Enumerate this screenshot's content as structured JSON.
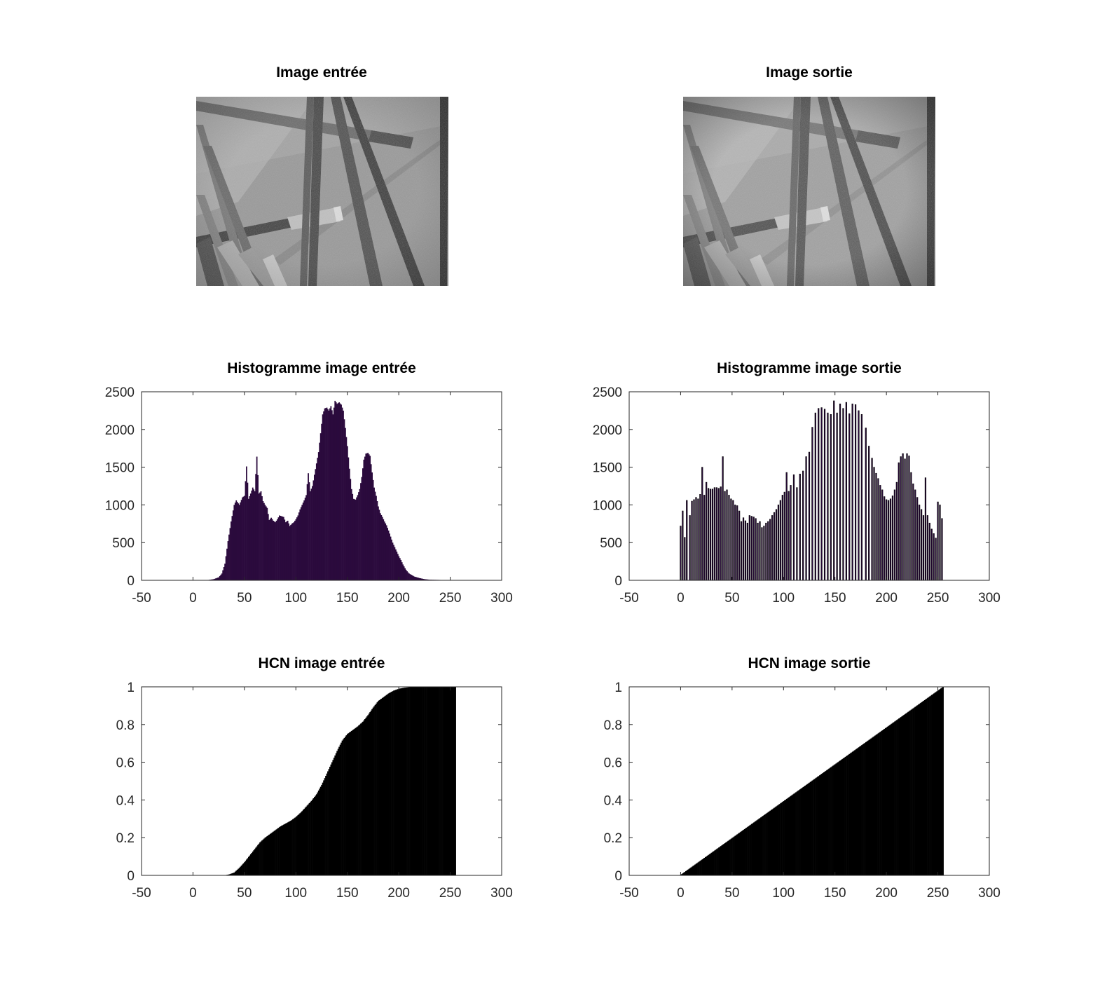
{
  "figure": {
    "images": [
      {
        "title": "Image entrée",
        "kind": "input"
      },
      {
        "title": "Image sortie",
        "kind": "output"
      }
    ]
  },
  "chart_data": [
    {
      "type": "bar",
      "title": "Histogramme image entrée",
      "xlabel": "",
      "ylabel": "",
      "xlim": [
        -50,
        300
      ],
      "ylim": [
        0,
        2500
      ],
      "xticks": [
        "-50",
        "0",
        "50",
        "100",
        "150",
        "200",
        "250",
        "300"
      ],
      "yticks": [
        "0",
        "500",
        "1000",
        "1500",
        "2000",
        "2500"
      ],
      "color": "#2b0a3d",
      "points": [
        [
          0,
          0
        ],
        [
          15,
          5
        ],
        [
          20,
          15
        ],
        [
          25,
          40
        ],
        [
          28,
          90
        ],
        [
          31,
          220
        ],
        [
          34,
          520
        ],
        [
          37,
          780
        ],
        [
          40,
          1000
        ],
        [
          42,
          1060
        ],
        [
          45,
          1000
        ],
        [
          48,
          1100
        ],
        [
          50,
          1120
        ],
        [
          52,
          1510
        ],
        [
          54,
          1080
        ],
        [
          56,
          1150
        ],
        [
          58,
          1230
        ],
        [
          60,
          1180
        ],
        [
          62,
          1640
        ],
        [
          64,
          1150
        ],
        [
          66,
          1180
        ],
        [
          68,
          1050
        ],
        [
          70,
          1000
        ],
        [
          72,
          960
        ],
        [
          74,
          800
        ],
        [
          76,
          830
        ],
        [
          78,
          790
        ],
        [
          80,
          770
        ],
        [
          82,
          810
        ],
        [
          84,
          860
        ],
        [
          86,
          850
        ],
        [
          88,
          840
        ],
        [
          90,
          770
        ],
        [
          92,
          790
        ],
        [
          94,
          720
        ],
        [
          96,
          750
        ],
        [
          98,
          770
        ],
        [
          100,
          810
        ],
        [
          102,
          860
        ],
        [
          104,
          940
        ],
        [
          106,
          1000
        ],
        [
          108,
          1060
        ],
        [
          110,
          1130
        ],
        [
          112,
          1420
        ],
        [
          114,
          1180
        ],
        [
          116,
          1250
        ],
        [
          118,
          1400
        ],
        [
          120,
          1550
        ],
        [
          122,
          1700
        ],
        [
          124,
          1950
        ],
        [
          126,
          2200
        ],
        [
          128,
          2280
        ],
        [
          130,
          2290
        ],
        [
          132,
          2250
        ],
        [
          134,
          2310
        ],
        [
          136,
          2200
        ],
        [
          138,
          2380
        ],
        [
          140,
          2340
        ],
        [
          142,
          2360
        ],
        [
          144,
          2330
        ],
        [
          146,
          2250
        ],
        [
          148,
          2020
        ],
        [
          150,
          1780
        ],
        [
          152,
          1480
        ],
        [
          154,
          1210
        ],
        [
          156,
          1080
        ],
        [
          158,
          1070
        ],
        [
          160,
          1130
        ],
        [
          162,
          1210
        ],
        [
          164,
          1370
        ],
        [
          166,
          1600
        ],
        [
          168,
          1680
        ],
        [
          170,
          1690
        ],
        [
          172,
          1650
        ],
        [
          174,
          1430
        ],
        [
          176,
          1230
        ],
        [
          178,
          1120
        ],
        [
          180,
          980
        ],
        [
          182,
          890
        ],
        [
          184,
          840
        ],
        [
          186,
          780
        ],
        [
          188,
          730
        ],
        [
          190,
          660
        ],
        [
          192,
          580
        ],
        [
          194,
          500
        ],
        [
          196,
          440
        ],
        [
          198,
          380
        ],
        [
          200,
          320
        ],
        [
          202,
          270
        ],
        [
          204,
          210
        ],
        [
          206,
          160
        ],
        [
          208,
          120
        ],
        [
          210,
          90
        ],
        [
          215,
          50
        ],
        [
          220,
          30
        ],
        [
          225,
          15
        ],
        [
          230,
          8
        ],
        [
          240,
          5
        ],
        [
          255,
          0
        ]
      ]
    },
    {
      "type": "bar",
      "title": "Histogramme image sortie",
      "xlabel": "",
      "ylabel": "",
      "xlim": [
        -50,
        300
      ],
      "ylim": [
        0,
        2500
      ],
      "xticks": [
        "-50",
        "0",
        "50",
        "100",
        "150",
        "200",
        "250",
        "300"
      ],
      "yticks": [
        "0",
        "500",
        "1000",
        "1500",
        "2000",
        "2500"
      ],
      "color": "#2b0a3d",
      "bars": [
        [
          0,
          720
        ],
        [
          2,
          920
        ],
        [
          4,
          570
        ],
        [
          6,
          1060
        ],
        [
          9,
          860
        ],
        [
          11,
          1050
        ],
        [
          13,
          1070
        ],
        [
          15,
          1100
        ],
        [
          17,
          1080
        ],
        [
          19,
          1140
        ],
        [
          21,
          1500
        ],
        [
          23,
          1130
        ],
        [
          25,
          1300
        ],
        [
          27,
          1220
        ],
        [
          29,
          1210
        ],
        [
          31,
          1210
        ],
        [
          33,
          1230
        ],
        [
          35,
          1230
        ],
        [
          37,
          1220
        ],
        [
          39,
          1240
        ],
        [
          41,
          1640
        ],
        [
          43,
          1180
        ],
        [
          45,
          1200
        ],
        [
          47,
          1130
        ],
        [
          49,
          1080
        ],
        [
          51,
          1060
        ],
        [
          53,
          1000
        ],
        [
          55,
          990
        ],
        [
          57,
          920
        ],
        [
          59,
          780
        ],
        [
          61,
          830
        ],
        [
          63,
          790
        ],
        [
          65,
          760
        ],
        [
          67,
          860
        ],
        [
          69,
          850
        ],
        [
          71,
          840
        ],
        [
          73,
          820
        ],
        [
          75,
          760
        ],
        [
          77,
          780
        ],
        [
          79,
          700
        ],
        [
          81,
          720
        ],
        [
          83,
          760
        ],
        [
          85,
          780
        ],
        [
          87,
          810
        ],
        [
          89,
          860
        ],
        [
          91,
          900
        ],
        [
          93,
          940
        ],
        [
          95,
          1000
        ],
        [
          97,
          1060
        ],
        [
          99,
          1130
        ],
        [
          101,
          1170
        ],
        [
          103,
          1430
        ],
        [
          105,
          1180
        ],
        [
          107,
          1260
        ],
        [
          110,
          1400
        ],
        [
          113,
          1230
        ],
        [
          116,
          1410
        ],
        [
          119,
          1450
        ],
        [
          122,
          1640
        ],
        [
          125,
          1700
        ],
        [
          128,
          2030
        ],
        [
          131,
          2220
        ],
        [
          134,
          2280
        ],
        [
          137,
          2290
        ],
        [
          140,
          2270
        ],
        [
          143,
          2220
        ],
        [
          146,
          2200
        ],
        [
          149,
          2380
        ],
        [
          152,
          2220
        ],
        [
          155,
          2340
        ],
        [
          158,
          2280
        ],
        [
          161,
          2360
        ],
        [
          164,
          2210
        ],
        [
          167,
          2340
        ],
        [
          170,
          2330
        ],
        [
          173,
          2250
        ],
        [
          176,
          2200
        ],
        [
          180,
          2020
        ],
        [
          183,
          1780
        ],
        [
          186,
          1620
        ],
        [
          188,
          1500
        ],
        [
          190,
          1420
        ],
        [
          192,
          1350
        ],
        [
          194,
          1260
        ],
        [
          196,
          1200
        ],
        [
          198,
          1110
        ],
        [
          200,
          1070
        ],
        [
          202,
          1060
        ],
        [
          204,
          1080
        ],
        [
          206,
          1120
        ],
        [
          208,
          1200
        ],
        [
          210,
          1300
        ],
        [
          212,
          1560
        ],
        [
          214,
          1640
        ],
        [
          216,
          1680
        ],
        [
          218,
          1610
        ],
        [
          220,
          1680
        ],
        [
          222,
          1650
        ],
        [
          224,
          1430
        ],
        [
          226,
          1280
        ],
        [
          228,
          1200
        ],
        [
          230,
          1100
        ],
        [
          232,
          1000
        ],
        [
          234,
          940
        ],
        [
          236,
          860
        ],
        [
          238,
          1360
        ],
        [
          240,
          860
        ],
        [
          242,
          760
        ],
        [
          244,
          680
        ],
        [
          246,
          620
        ],
        [
          248,
          560
        ],
        [
          250,
          1040
        ],
        [
          252,
          1000
        ],
        [
          254,
          820
        ]
      ]
    },
    {
      "type": "bar",
      "title": "HCN image entrée",
      "xlabel": "",
      "ylabel": "",
      "xlim": [
        -50,
        300
      ],
      "ylim": [
        0,
        1
      ],
      "xticks": [
        "-50",
        "0",
        "50",
        "100",
        "150",
        "200",
        "250",
        "300"
      ],
      "yticks": [
        "0",
        "0.2",
        "0.4",
        "0.6",
        "0.8",
        "1"
      ],
      "color": "#000000",
      "points": [
        [
          0,
          0
        ],
        [
          30,
          0
        ],
        [
          35,
          0.005
        ],
        [
          40,
          0.015
        ],
        [
          45,
          0.04
        ],
        [
          50,
          0.07
        ],
        [
          55,
          0.105
        ],
        [
          60,
          0.14
        ],
        [
          65,
          0.175
        ],
        [
          70,
          0.2
        ],
        [
          75,
          0.22
        ],
        [
          80,
          0.24
        ],
        [
          85,
          0.26
        ],
        [
          90,
          0.275
        ],
        [
          95,
          0.29
        ],
        [
          100,
          0.31
        ],
        [
          105,
          0.335
        ],
        [
          110,
          0.365
        ],
        [
          115,
          0.395
        ],
        [
          120,
          0.43
        ],
        [
          125,
          0.48
        ],
        [
          130,
          0.54
        ],
        [
          135,
          0.6
        ],
        [
          140,
          0.66
        ],
        [
          145,
          0.715
        ],
        [
          150,
          0.75
        ],
        [
          155,
          0.77
        ],
        [
          160,
          0.79
        ],
        [
          165,
          0.815
        ],
        [
          170,
          0.85
        ],
        [
          175,
          0.89
        ],
        [
          180,
          0.925
        ],
        [
          185,
          0.945
        ],
        [
          190,
          0.965
        ],
        [
          195,
          0.98
        ],
        [
          200,
          0.99
        ],
        [
          205,
          0.995
        ],
        [
          210,
          0.998
        ],
        [
          215,
          1
        ],
        [
          255,
          1
        ]
      ]
    },
    {
      "type": "bar",
      "title": "HCN image sortie",
      "xlabel": "",
      "ylabel": "",
      "xlim": [
        -50,
        300
      ],
      "ylim": [
        0,
        1
      ],
      "xticks": [
        "-50",
        "0",
        "50",
        "100",
        "150",
        "200",
        "250",
        "300"
      ],
      "yticks": [
        "0",
        "0.2",
        "0.4",
        "0.6",
        "0.8",
        "1"
      ],
      "color": "#000000",
      "points": [
        [
          0,
          0.003
        ],
        [
          255,
          1
        ]
      ]
    }
  ]
}
